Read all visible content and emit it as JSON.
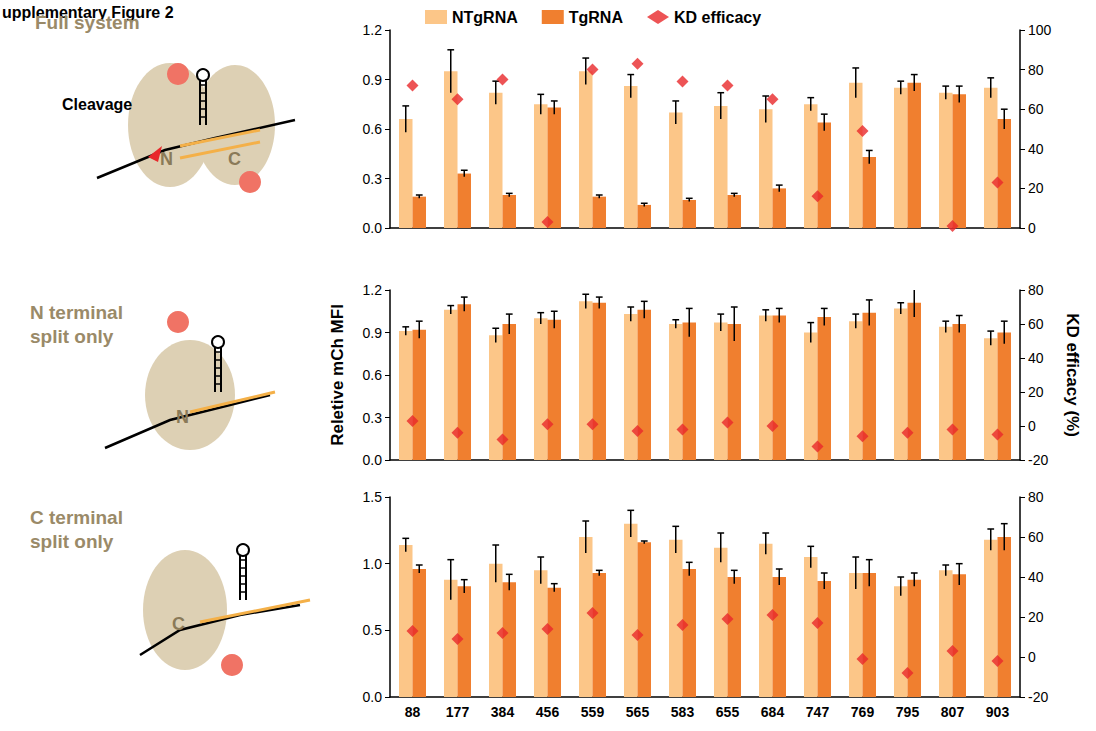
{
  "figure_title": "upplementary Figure 2",
  "chart_data": [
    {
      "type": "bar",
      "title": "Full system",
      "annotations": [
        "Cleavage",
        "N",
        "C"
      ],
      "legend": "top",
      "tick_labels": "y",
      "categories": [
        "88",
        "177",
        "384",
        "456",
        "559",
        "565",
        "583",
        "655",
        "684",
        "747",
        "769",
        "795",
        "807",
        "903"
      ],
      "ylim": [
        0,
        1.2
      ],
      "yticks": [
        {
          "value": 0,
          "label": "0.0"
        },
        0.3,
        0.6,
        0.9,
        1.2
      ],
      "y2lim": [
        0,
        100
      ],
      "y2ticks": [
        0,
        20,
        40,
        60,
        80,
        100
      ],
      "series": [
        {
          "name": "NTgRNA",
          "color": "#fcc688",
          "values": [
            0.66,
            0.95,
            0.82,
            0.75,
            0.95,
            0.86,
            0.7,
            0.74,
            0.72,
            0.75,
            0.88,
            0.85,
            0.82,
            0.85
          ],
          "errors": [
            0.08,
            0.13,
            0.07,
            0.06,
            0.08,
            0.07,
            0.07,
            0.08,
            0.08,
            0.04,
            0.09,
            0.04,
            0.04,
            0.06
          ]
        },
        {
          "name": "TgRNA",
          "color": "#f07f2f",
          "values": [
            0.19,
            0.33,
            0.2,
            0.73,
            0.19,
            0.14,
            0.17,
            0.2,
            0.24,
            0.64,
            0.43,
            0.88,
            0.81,
            0.66
          ],
          "errors": [
            0.01,
            0.02,
            0.01,
            0.04,
            0.01,
            0.01,
            0.01,
            0.01,
            0.02,
            0.05,
            0.04,
            0.05,
            0.05,
            0.06
          ]
        },
        {
          "name": "KD efficacy",
          "type": "scatter",
          "marker": "diamond",
          "axis": "y2",
          "color": "#e8282b",
          "values": [
            72,
            65,
            75,
            3,
            80,
            83,
            74,
            72,
            65,
            16,
            49,
            null,
            1,
            23
          ]
        }
      ]
    },
    {
      "type": "bar",
      "title": "N terminal split only",
      "annotations": [
        "N"
      ],
      "tick_labels": "y",
      "y_label": "Reletive mCh MFI",
      "y2_label": "KD efficacy (%)",
      "categories": [
        "88",
        "177",
        "384",
        "456",
        "559",
        "565",
        "583",
        "655",
        "684",
        "747",
        "769",
        "795",
        "807",
        "903"
      ],
      "ylim": [
        0,
        1.2
      ],
      "yticks": [
        {
          "value": 0,
          "label": "0.0"
        },
        0.3,
        0.6,
        0.9,
        1.2
      ],
      "y2lim": [
        -20,
        80
      ],
      "y2ticks": [
        -20,
        0,
        20,
        40,
        60,
        80
      ],
      "series": [
        {
          "name": "NTgRNA",
          "color": "#fcc688",
          "values": [
            0.91,
            1.06,
            0.88,
            1.0,
            1.12,
            1.03,
            0.96,
            0.97,
            1.02,
            0.9,
            0.98,
            1.07,
            0.94,
            0.86
          ],
          "errors": [
            0.03,
            0.03,
            0.05,
            0.04,
            0.05,
            0.05,
            0.03,
            0.06,
            0.04,
            0.07,
            0.05,
            0.04,
            0.04,
            0.05
          ]
        },
        {
          "name": "TgRNA",
          "color": "#f07f2f",
          "values": [
            0.92,
            1.1,
            0.96,
            0.99,
            1.11,
            1.06,
            0.97,
            0.96,
            1.02,
            1.01,
            1.04,
            1.11,
            0.96,
            0.9
          ],
          "errors": [
            0.06,
            0.05,
            0.07,
            0.06,
            0.04,
            0.06,
            0.1,
            0.12,
            0.05,
            0.06,
            0.09,
            0.1,
            0.06,
            0.08
          ]
        },
        {
          "name": "KD efficacy",
          "type": "scatter",
          "marker": "diamond",
          "axis": "y2",
          "color": "#e8282b",
          "values": [
            3,
            -4,
            -8,
            1,
            1,
            -3,
            -2,
            2,
            0,
            -12,
            -6,
            -4,
            -2,
            -5
          ]
        }
      ]
    },
    {
      "type": "bar",
      "title": "C terminal split only",
      "annotations": [
        "C"
      ],
      "categories": [
        "88",
        "177",
        "384",
        "456",
        "559",
        "565",
        "583",
        "655",
        "684",
        "747",
        "769",
        "795",
        "807",
        "903"
      ],
      "ylim": [
        0,
        1.5
      ],
      "yticks": [
        {
          "value": 0,
          "label": "0.0"
        },
        0.5,
        {
          "value": 1,
          "label": "1.0"
        },
        1.5
      ],
      "y2lim": [
        -20,
        80
      ],
      "y2ticks": [
        -20,
        0,
        20,
        40,
        60,
        80
      ],
      "series": [
        {
          "name": "NTgRNA",
          "color": "#fcc688",
          "values": [
            1.14,
            0.88,
            1.0,
            0.95,
            1.2,
            1.3,
            1.18,
            1.12,
            1.15,
            1.05,
            0.93,
            0.83,
            0.95,
            1.18
          ],
          "errors": [
            0.05,
            0.15,
            0.14,
            0.1,
            0.12,
            0.1,
            0.1,
            0.11,
            0.08,
            0.08,
            0.12,
            0.07,
            0.04,
            0.08
          ]
        },
        {
          "name": "TgRNA",
          "color": "#f07f2f",
          "values": [
            0.96,
            0.83,
            0.86,
            0.82,
            0.93,
            1.16,
            0.96,
            0.9,
            0.9,
            0.87,
            0.93,
            0.88,
            0.92,
            1.2
          ],
          "errors": [
            0.03,
            0.05,
            0.06,
            0.03,
            0.02,
            0.01,
            0.05,
            0.05,
            0.06,
            0.06,
            0.1,
            0.05,
            0.08,
            0.1
          ]
        },
        {
          "name": "KD efficacy",
          "type": "scatter",
          "marker": "diamond",
          "axis": "y2",
          "color": "#e8282b",
          "values": [
            13,
            9,
            12,
            14,
            22,
            11,
            16,
            19,
            21,
            17,
            -1,
            -8,
            3,
            -2
          ]
        }
      ]
    }
  ]
}
